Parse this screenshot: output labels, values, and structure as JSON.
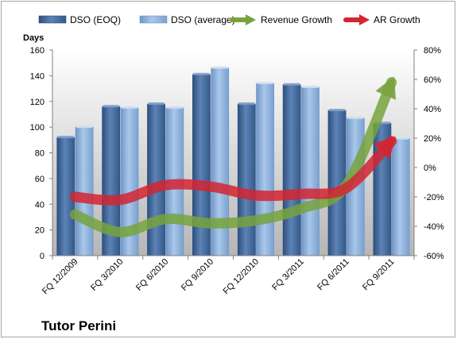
{
  "chart_data": {
    "type": "bar",
    "categories": [
      "FQ 12/2009",
      "FQ 3/2010",
      "FQ 6/2010",
      "FQ 9/2010",
      "FQ 12/2010",
      "FQ 3/2011",
      "FQ 6/2011",
      "FQ 9/2011"
    ],
    "series": [
      {
        "name": "DSO (EOQ)",
        "axis": "left",
        "kind": "bar",
        "color": "#4a6fa0",
        "values": [
          92,
          116,
          118,
          141,
          118,
          133,
          113,
          103
        ]
      },
      {
        "name": "DSO (average)",
        "axis": "left",
        "kind": "bar",
        "color": "#8fb2dc",
        "values": [
          100,
          115,
          115,
          146,
          134,
          131,
          107,
          91
        ]
      },
      {
        "name": "Revenue Growth",
        "axis": "right",
        "kind": "line",
        "color": "#77a33d",
        "values": [
          -32,
          -44,
          -35,
          -38,
          -36,
          -28,
          -12,
          58
        ]
      },
      {
        "name": "AR Growth",
        "axis": "right",
        "kind": "line",
        "color": "#d42531",
        "values": [
          -20,
          -22,
          -12,
          -13,
          -19,
          -18,
          -14,
          18
        ]
      }
    ],
    "ylabel": "Days",
    "ylim": [
      0,
      160
    ],
    "yticks": [
      0,
      20,
      40,
      60,
      80,
      100,
      120,
      140,
      160
    ],
    "y2lim": [
      -60,
      80
    ],
    "y2ticks": [
      "-60%",
      "-40%",
      "-20%",
      "0%",
      "20%",
      "40%",
      "60%",
      "80%"
    ],
    "grid": false,
    "legend": "top",
    "company": "Tutor Perini"
  }
}
